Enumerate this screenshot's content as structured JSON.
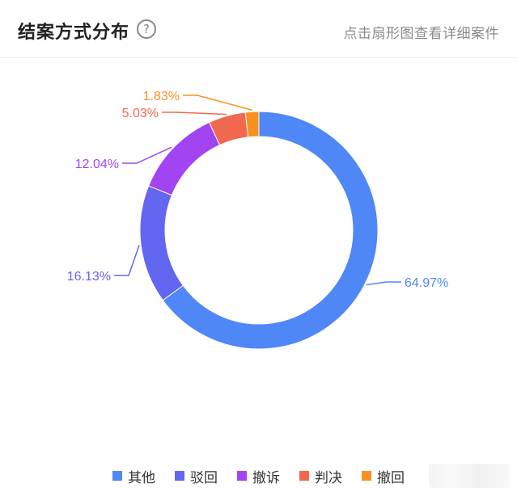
{
  "header": {
    "title": "结案方式分布",
    "help_icon": "?",
    "hint": "点击扇形图查看详细案件"
  },
  "chart_data": {
    "type": "pie",
    "variant": "donut",
    "title": "结案方式分布",
    "legend_position": "bottom",
    "slices": [
      {
        "name": "其他",
        "value": 64.97,
        "label": "64.97%",
        "color": "#4f87f7"
      },
      {
        "name": "驳回",
        "value": 16.13,
        "label": "16.13%",
        "color": "#6366f0"
      },
      {
        "name": "撤诉",
        "value": 12.04,
        "label": "12.04%",
        "color": "#a244f2"
      },
      {
        "name": "判决",
        "value": 5.03,
        "label": "5.03%",
        "color": "#f1684f"
      },
      {
        "name": "撤回",
        "value": 1.83,
        "label": "1.83%",
        "color": "#f7921e"
      }
    ]
  }
}
